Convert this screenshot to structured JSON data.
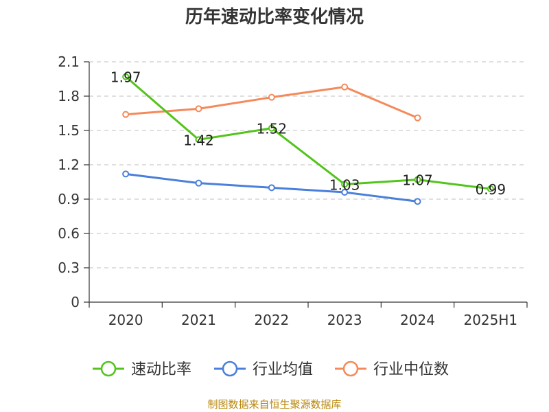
{
  "chart_data": {
    "type": "line",
    "title": "历年速动比率变化情况",
    "categories": [
      "2020",
      "2021",
      "2022",
      "2023",
      "2024",
      "2025H1"
    ],
    "ylim": [
      0,
      2.1
    ],
    "yticks": [
      "0",
      "0.3",
      "0.6",
      "0.9",
      "1.2",
      "1.5",
      "1.8",
      "2.1"
    ],
    "grid": true,
    "legend_position": "bottom",
    "series": [
      {
        "name": "速动比率",
        "color": "#52c41a",
        "values": [
          1.97,
          1.42,
          1.52,
          1.03,
          1.07,
          0.99
        ],
        "labels": [
          "1.97",
          "1.42",
          "1.52",
          "1.03",
          "1.07",
          "0.99"
        ]
      },
      {
        "name": "行业均值",
        "color": "#4a7fdb",
        "values": [
          1.12,
          1.04,
          1.0,
          0.96,
          0.88,
          null
        ]
      },
      {
        "name": "行业中位数",
        "color": "#f5895a",
        "values": [
          1.64,
          1.69,
          1.79,
          1.88,
          1.61,
          null
        ]
      }
    ],
    "source": "制图数据来自恒生聚源数据库"
  }
}
